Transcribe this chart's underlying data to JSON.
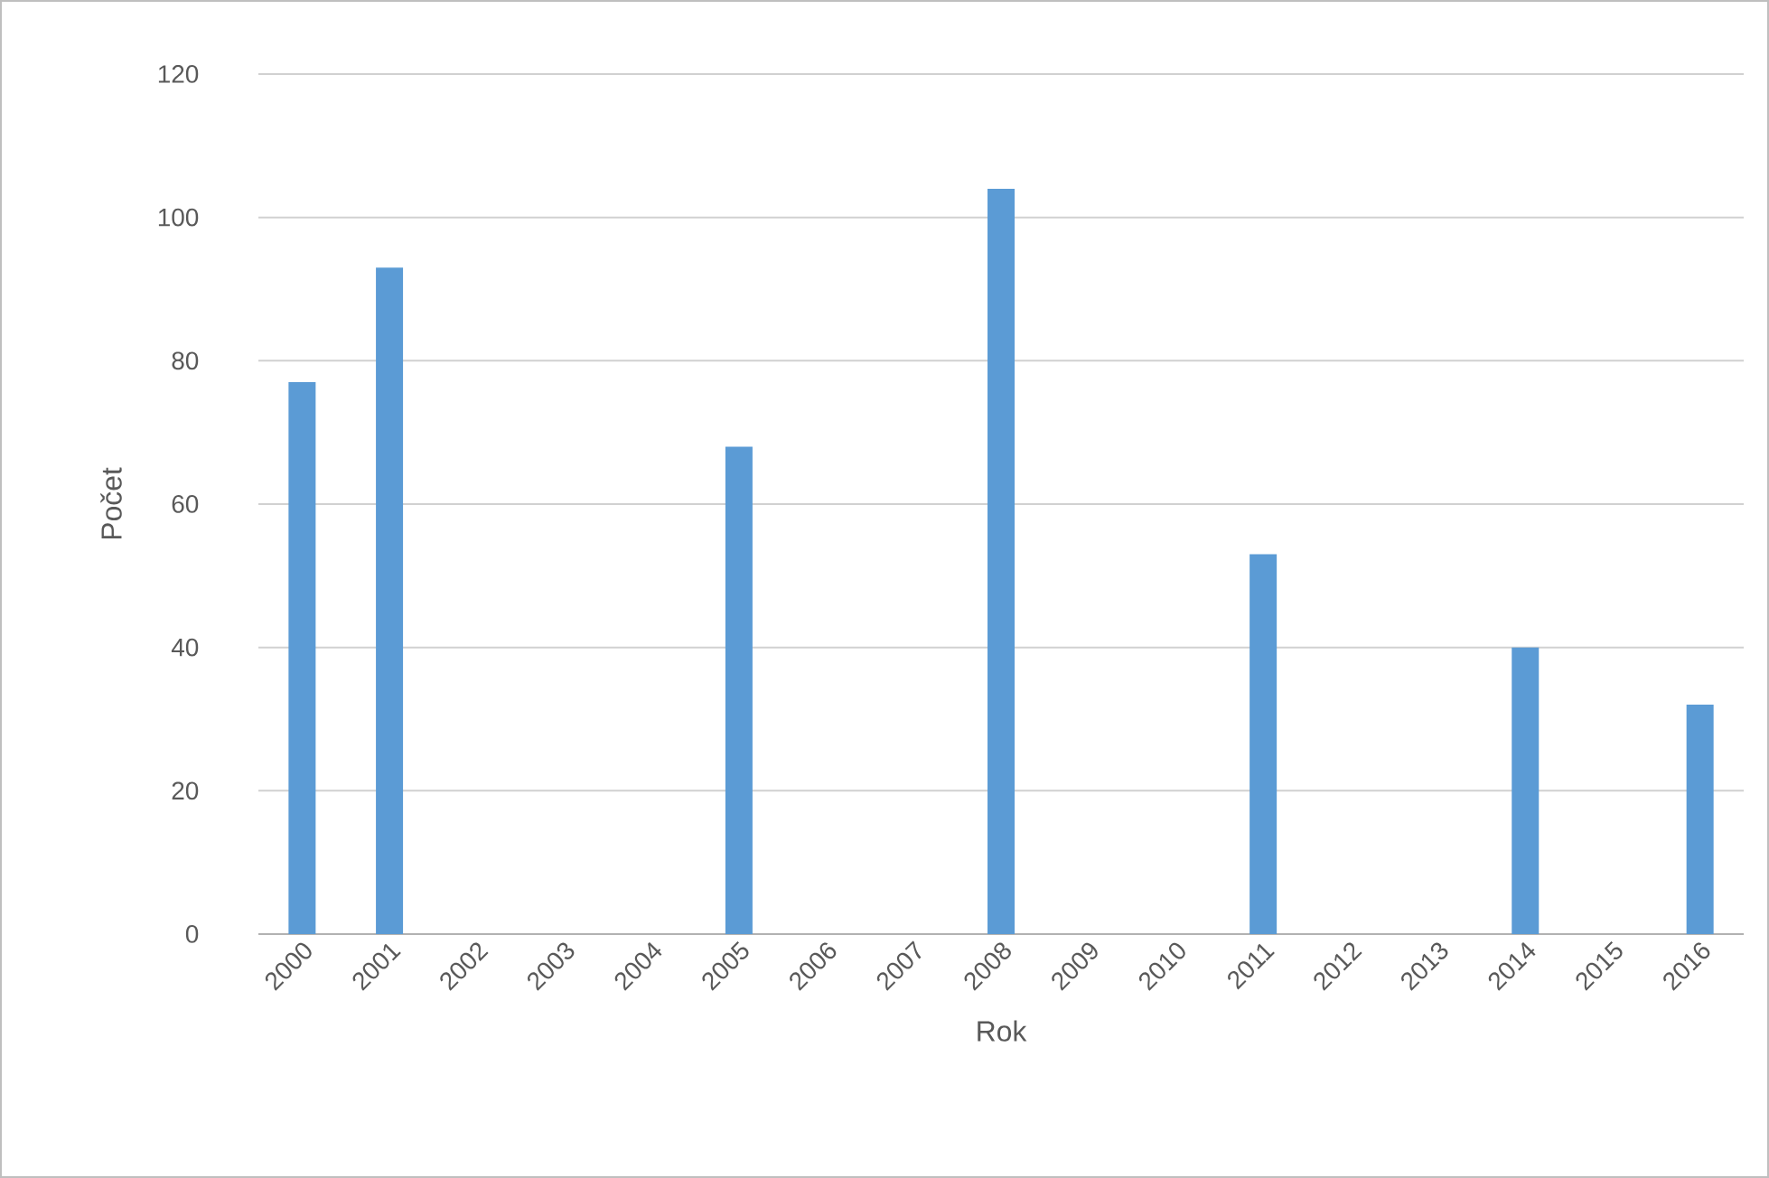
{
  "chart_data": {
    "type": "bar",
    "xlabel": "Rok",
    "ylabel": "Počet",
    "categories": [
      "2000",
      "2001",
      "2002",
      "2003",
      "2004",
      "2005",
      "2006",
      "2007",
      "2008",
      "2009",
      "2010",
      "2011",
      "2012",
      "2013",
      "2014",
      "2015",
      "2016"
    ],
    "values": [
      77,
      93,
      null,
      null,
      null,
      68,
      null,
      null,
      104,
      null,
      null,
      53,
      null,
      null,
      40,
      null,
      32
    ],
    "color": "#5b9bd5",
    "ylim": [
      0,
      120
    ],
    "yticks": [
      0,
      20,
      40,
      60,
      80,
      100,
      120
    ],
    "grid": "y"
  }
}
